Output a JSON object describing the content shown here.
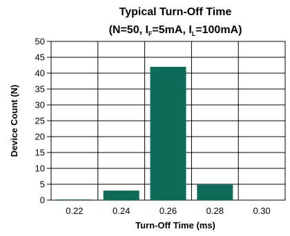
{
  "chart_data": {
    "type": "bar",
    "title_line1": "Typical Turn-Off Time",
    "title_line2": {
      "p1": "(N=50, I",
      "sub1": "F",
      "p2": "=5mA, I",
      "sub2": "L",
      "p3": "=100mA)"
    },
    "xlabel": "Turn-Off Time (ms)",
    "ylabel": "Device Count (N)",
    "categories": [
      "0.22",
      "0.24",
      "0.26",
      "0.28",
      "0.30"
    ],
    "values": [
      0.2,
      3,
      42,
      5,
      0
    ],
    "ylim": [
      0,
      50
    ],
    "yticks": [
      0,
      5,
      10,
      15,
      20,
      25,
      30,
      35,
      40,
      45,
      50
    ],
    "grid": true,
    "bar_color": "#0e6b57",
    "grid_color": "#000000"
  }
}
